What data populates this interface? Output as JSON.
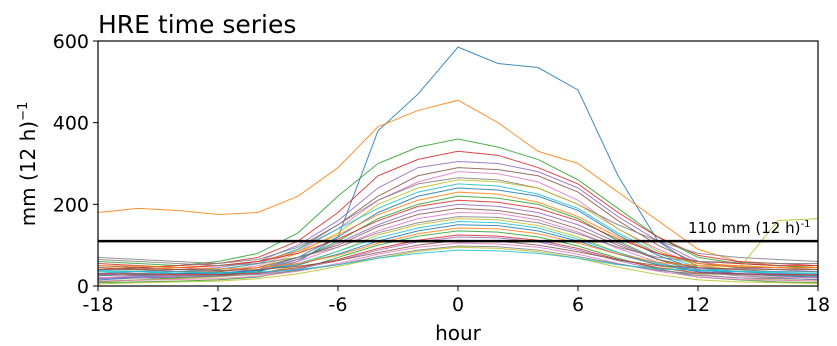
{
  "chart_data": {
    "type": "line",
    "title": "HRE time series",
    "xlabel": "hour",
    "ylabel": "mm (12 h)",
    "ylabel_superscript": "−1",
    "xlim": [
      -18,
      18
    ],
    "ylim": [
      0,
      600
    ],
    "xticks": [
      -18,
      -12,
      -6,
      0,
      6,
      12,
      18
    ],
    "yticks": [
      0,
      200,
      400,
      600
    ],
    "grid": false,
    "legend": "none",
    "threshold": {
      "value": 110,
      "label": "110 mm (12 h)",
      "label_superscript": "-1",
      "color": "#000000"
    },
    "series_colors": [
      "#1f77b4",
      "#ff7f0e",
      "#2ca02c",
      "#d62728",
      "#9467bd",
      "#8c564b",
      "#e377c2",
      "#7f7f7f",
      "#bcbd22",
      "#17becf"
    ],
    "x": [
      -18,
      -16,
      -14,
      -12,
      -10,
      -8,
      -6,
      -4,
      -2,
      0,
      2,
      4,
      6,
      8,
      10,
      12,
      14,
      16,
      18
    ],
    "series": [
      {
        "values": [
          20,
          22,
          25,
          28,
          35,
          60,
          120,
          380,
          470,
          585,
          545,
          535,
          480,
          270,
          110,
          45,
          30,
          25,
          22
        ]
      },
      {
        "values": [
          180,
          190,
          185,
          175,
          180,
          220,
          290,
          390,
          430,
          455,
          400,
          330,
          300,
          230,
          160,
          90,
          60,
          50,
          45
        ]
      },
      {
        "values": [
          60,
          55,
          50,
          60,
          80,
          130,
          220,
          300,
          340,
          360,
          340,
          310,
          260,
          190,
          120,
          70,
          55,
          50,
          45
        ]
      },
      {
        "values": [
          40,
          45,
          50,
          55,
          70,
          110,
          180,
          270,
          310,
          330,
          320,
          290,
          250,
          180,
          120,
          75,
          60,
          55,
          50
        ]
      },
      {
        "values": [
          30,
          35,
          40,
          45,
          60,
          100,
          160,
          240,
          290,
          305,
          300,
          280,
          240,
          170,
          110,
          60,
          45,
          40,
          35
        ]
      },
      {
        "values": [
          50,
          45,
          40,
          40,
          55,
          90,
          150,
          220,
          270,
          290,
          285,
          270,
          230,
          160,
          100,
          55,
          45,
          45,
          40
        ]
      },
      {
        "values": [
          20,
          25,
          30,
          35,
          50,
          85,
          140,
          210,
          255,
          280,
          275,
          255,
          210,
          140,
          90,
          50,
          35,
          30,
          25
        ]
      },
      {
        "values": [
          70,
          65,
          60,
          55,
          65,
          95,
          150,
          210,
          250,
          265,
          260,
          240,
          200,
          150,
          110,
          80,
          70,
          65,
          60
        ]
      },
      {
        "values": [
          25,
          30,
          30,
          35,
          45,
          80,
          130,
          200,
          240,
          260,
          255,
          240,
          200,
          140,
          85,
          50,
          40,
          160,
          165
        ]
      },
      {
        "values": [
          35,
          30,
          35,
          40,
          55,
          90,
          140,
          190,
          230,
          250,
          245,
          225,
          190,
          130,
          80,
          45,
          35,
          30,
          30
        ]
      },
      {
        "values": [
          15,
          20,
          20,
          25,
          40,
          70,
          120,
          180,
          220,
          240,
          235,
          220,
          185,
          125,
          75,
          40,
          30,
          25,
          20
        ]
      },
      {
        "values": [
          45,
          40,
          45,
          50,
          60,
          85,
          125,
          175,
          210,
          230,
          225,
          205,
          170,
          120,
          80,
          55,
          50,
          45,
          45
        ]
      },
      {
        "values": [
          10,
          15,
          20,
          25,
          35,
          65,
          110,
          165,
          200,
          220,
          215,
          200,
          165,
          110,
          65,
          35,
          25,
          20,
          15
        ]
      },
      {
        "values": [
          55,
          50,
          45,
          50,
          60,
          80,
          115,
          160,
          195,
          210,
          205,
          190,
          160,
          115,
          80,
          60,
          55,
          50,
          50
        ]
      },
      {
        "values": [
          30,
          25,
          25,
          30,
          40,
          65,
          105,
          150,
          185,
          200,
          195,
          180,
          150,
          105,
          65,
          40,
          30,
          30,
          25
        ]
      },
      {
        "values": [
          40,
          40,
          35,
          35,
          45,
          70,
          100,
          145,
          175,
          190,
          185,
          170,
          140,
          100,
          65,
          45,
          40,
          35,
          35
        ]
      },
      {
        "values": [
          20,
          20,
          25,
          30,
          40,
          60,
          95,
          135,
          165,
          180,
          178,
          162,
          132,
          92,
          58,
          35,
          25,
          22,
          20
        ]
      },
      {
        "values": [
          65,
          60,
          55,
          50,
          55,
          70,
          95,
          130,
          155,
          170,
          168,
          155,
          128,
          95,
          70,
          60,
          58,
          55,
          55
        ]
      },
      {
        "values": [
          12,
          15,
          18,
          22,
          30,
          50,
          85,
          125,
          150,
          165,
          162,
          148,
          120,
          82,
          50,
          28,
          20,
          15,
          12
        ]
      },
      {
        "values": [
          35,
          35,
          30,
          30,
          38,
          55,
          85,
          118,
          142,
          158,
          155,
          142,
          115,
          82,
          55,
          38,
          35,
          32,
          30
        ]
      },
      {
        "values": [
          25,
          28,
          30,
          32,
          38,
          52,
          78,
          110,
          135,
          150,
          148,
          135,
          110,
          78,
          52,
          35,
          30,
          28,
          25
        ]
      },
      {
        "values": [
          50,
          48,
          45,
          42,
          45,
          55,
          75,
          105,
          128,
          142,
          140,
          128,
          105,
          78,
          58,
          50,
          48,
          45,
          45
        ]
      },
      {
        "values": [
          8,
          10,
          12,
          15,
          22,
          40,
          70,
          100,
          122,
          135,
          132,
          120,
          98,
          68,
          42,
          22,
          15,
          10,
          8
        ]
      },
      {
        "values": [
          30,
          30,
          28,
          28,
          32,
          45,
          65,
          92,
          112,
          125,
          122,
          112,
          92,
          65,
          45,
          32,
          30,
          28,
          28
        ]
      },
      {
        "values": [
          18,
          20,
          22,
          24,
          30,
          42,
          62,
          88,
          108,
          120,
          118,
          108,
          88,
          62,
          40,
          26,
          20,
          18,
          16
        ]
      },
      {
        "values": [
          45,
          42,
          40,
          38,
          40,
          48,
          62,
          82,
          100,
          112,
          110,
          100,
          84,
          64,
          50,
          44,
          42,
          40,
          40
        ]
      },
      {
        "values": [
          12,
          14,
          16,
          18,
          24,
          36,
          55,
          78,
          95,
          105,
          103,
          95,
          78,
          55,
          36,
          22,
          16,
          14,
          12
        ]
      },
      {
        "values": [
          28,
          26,
          25,
          25,
          28,
          38,
          52,
          72,
          88,
          98,
          96,
          88,
          72,
          54,
          38,
          30,
          28,
          26,
          25
        ]
      },
      {
        "values": [
          5,
          8,
          10,
          12,
          18,
          30,
          48,
          68,
          85,
          95,
          92,
          84,
          68,
          46,
          28,
          15,
          10,
          8,
          6
        ]
      },
      {
        "values": [
          38,
          36,
          34,
          32,
          34,
          40,
          52,
          68,
          80,
          88,
          86,
          80,
          68,
          52,
          42,
          38,
          36,
          35,
          34
        ]
      }
    ]
  }
}
